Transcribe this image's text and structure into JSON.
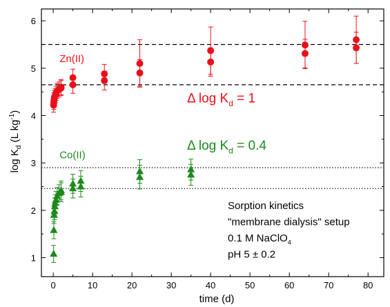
{
  "chart_data": {
    "type": "scatter",
    "xlabel": "time (d)",
    "ylabel": {
      "base": "log K",
      "sub": "d",
      "unit_open": " (L kg",
      "sup": "-1",
      "unit_close": ")"
    },
    "xlim": [
      -3,
      84
    ],
    "ylim": [
      0.6,
      6.25
    ],
    "x_ticks": [
      0,
      10,
      20,
      30,
      40,
      50,
      60,
      70,
      80
    ],
    "y_ticks": [
      1,
      2,
      3,
      4,
      5,
      6
    ],
    "grid": false,
    "series": [
      {
        "name": "Zn(II)",
        "marker": "circle",
        "color": "#e8101a",
        "points": [
          {
            "x": 0.1,
            "y": 4.22,
            "err": 0.15
          },
          {
            "x": 0.15,
            "y": 4.28,
            "err": 0.15
          },
          {
            "x": 0.2,
            "y": 4.33,
            "err": 0.15
          },
          {
            "x": 0.3,
            "y": 4.38,
            "err": 0.15
          },
          {
            "x": 0.5,
            "y": 4.42,
            "err": 0.15
          },
          {
            "x": 0.7,
            "y": 4.47,
            "err": 0.15
          },
          {
            "x": 1.0,
            "y": 4.52,
            "err": 0.16
          },
          {
            "x": 1.5,
            "y": 4.55,
            "err": 0.16
          },
          {
            "x": 2.0,
            "y": 4.58,
            "err": 0.16
          },
          {
            "x": 2.0,
            "y": 4.6,
            "err": 0.16
          },
          {
            "x": 5.0,
            "y": 4.65,
            "err": 0.18
          },
          {
            "x": 5.0,
            "y": 4.8,
            "err": 0.18
          },
          {
            "x": 13.0,
            "y": 4.74,
            "err": 0.2
          },
          {
            "x": 13.0,
            "y": 4.88,
            "err": 0.2
          },
          {
            "x": 22.0,
            "y": 4.9,
            "err": 0.28
          },
          {
            "x": 22.0,
            "y": 5.1,
            "err": 0.5
          },
          {
            "x": 40.0,
            "y": 5.13,
            "err": 0.3
          },
          {
            "x": 40.0,
            "y": 5.37,
            "err": 0.5
          },
          {
            "x": 64.0,
            "y": 5.31,
            "err": 0.3
          },
          {
            "x": 64.0,
            "y": 5.49,
            "err": 0.5
          },
          {
            "x": 77.0,
            "y": 5.43,
            "err": 0.33
          },
          {
            "x": 77.0,
            "y": 5.6,
            "err": 0.5
          }
        ]
      },
      {
        "name": "Co(II)",
        "marker": "triangle",
        "color": "#1b8a1b",
        "points": [
          {
            "x": 0.1,
            "y": 1.08,
            "err": 0.18
          },
          {
            "x": 0.15,
            "y": 1.58,
            "err": 0.18
          },
          {
            "x": 0.2,
            "y": 1.9,
            "err": 0.18
          },
          {
            "x": 0.3,
            "y": 1.98,
            "err": 0.18
          },
          {
            "x": 0.4,
            "y": 2.08,
            "err": 0.18
          },
          {
            "x": 0.5,
            "y": 2.15,
            "err": 0.18
          },
          {
            "x": 0.7,
            "y": 2.22,
            "err": 0.18
          },
          {
            "x": 1.0,
            "y": 2.3,
            "err": 0.18
          },
          {
            "x": 1.5,
            "y": 2.36,
            "err": 0.18
          },
          {
            "x": 2.0,
            "y": 2.38,
            "err": 0.2
          },
          {
            "x": 2.0,
            "y": 2.42,
            "err": 0.2
          },
          {
            "x": 5.0,
            "y": 2.46,
            "err": 0.2
          },
          {
            "x": 5.0,
            "y": 2.56,
            "err": 0.2
          },
          {
            "x": 7.0,
            "y": 2.5,
            "err": 0.22
          },
          {
            "x": 7.0,
            "y": 2.62,
            "err": 0.22
          },
          {
            "x": 22.0,
            "y": 2.7,
            "err": 0.25
          },
          {
            "x": 22.0,
            "y": 2.82,
            "err": 0.25
          },
          {
            "x": 35.0,
            "y": 2.75,
            "err": 0.22
          },
          {
            "x": 35.0,
            "y": 2.86,
            "err": 0.22
          }
        ]
      }
    ],
    "reference_lines": [
      {
        "y": 5.5,
        "style": "dashed"
      },
      {
        "y": 4.65,
        "style": "dashed"
      },
      {
        "y": 2.9,
        "style": "dotted"
      },
      {
        "y": 2.46,
        "style": "dotted"
      }
    ],
    "annotations": [
      {
        "id": "zn-label",
        "base": "Zn(II)",
        "color": "#e8101a",
        "x": 1.6,
        "y": 5.13
      },
      {
        "id": "zn-delta",
        "base": "Δ log K",
        "sub": "d",
        "tail": " = 1",
        "color": "#e8101a",
        "x": 34,
        "y": 4.28
      },
      {
        "id": "co-label",
        "base": "Co(II)",
        "color": "#1b8a1b",
        "x": 1.6,
        "y": 3.1
      },
      {
        "id": "co-delta",
        "base": "Δ log K",
        "sub": "d",
        "tail": " = 0.4",
        "color": "#1b8a1b",
        "x": 34,
        "y": 3.28
      }
    ],
    "info_box": [
      {
        "base": "Sorption kinetics"
      },
      {
        "base": "\"membrane dialysis\" setup"
      },
      {
        "base": "0.1 M NaClO",
        "sub": "4"
      },
      {
        "base": "pH 5 ± 0.2"
      }
    ]
  }
}
